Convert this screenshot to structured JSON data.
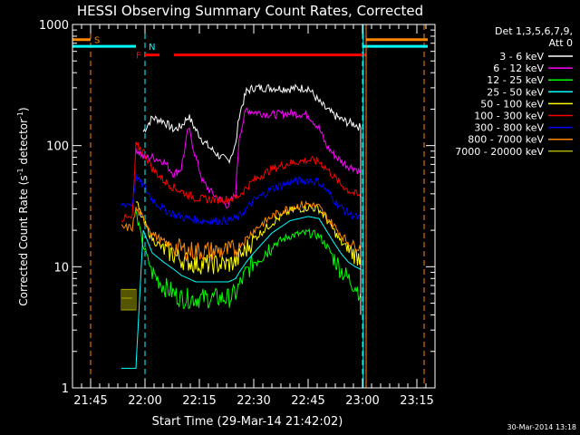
{
  "chart_data": {
    "type": "line",
    "title": "HESSI Observing Summary Count Rates, Corrected",
    "xlabel": "Start Time (29-Mar-14 21:42:02)",
    "ylabel": "Corrected Count Rate (s⁻¹ detector⁻¹)",
    "ylabel_main": "Corrected Count Rate (s",
    "ylabel_sup1": "-1",
    "ylabel_mid": " detector",
    "ylabel_sup2": "-1",
    "ylabel_end": ")",
    "x_unit": "minutes since 21:40 UT",
    "xlim": [
      0,
      100
    ],
    "ylim": [
      1,
      1000
    ],
    "yscale": "log",
    "x_ticks": [
      {
        "v": 5,
        "label": "21:45"
      },
      {
        "v": 20,
        "label": "22:00"
      },
      {
        "v": 35,
        "label": "22:15"
      },
      {
        "v": 50,
        "label": "22:30"
      },
      {
        "v": 65,
        "label": "22:45"
      },
      {
        "v": 80,
        "label": "23:00"
      },
      {
        "v": 95,
        "label": "23:15"
      }
    ],
    "y_ticks": [
      {
        "v": 1,
        "label": "1"
      },
      {
        "v": 10,
        "label": "10"
      },
      {
        "v": 100,
        "label": "100"
      },
      {
        "v": 1000,
        "label": "1000"
      }
    ],
    "legend": {
      "placement": "top-right, outside plot",
      "header1": "Det 1,3,5,6,7,9,",
      "header2": "Att 0"
    },
    "series": [
      {
        "name": "3 - 6 keV",
        "color": "#ffffff",
        "x": [
          13.5,
          14.5,
          15.5,
          16.5,
          17.5,
          19.5,
          22,
          25,
          28,
          30,
          32,
          34,
          36,
          38,
          41,
          43,
          45,
          46,
          48,
          50,
          55,
          60,
          65,
          68,
          70,
          72,
          74,
          76,
          78,
          79.5
        ],
        "y": [
          null,
          null,
          null,
          null,
          null,
          130,
          170,
          160,
          135,
          145,
          175,
          135,
          110,
          95,
          80,
          75,
          100,
          180,
          280,
          300,
          300,
          295,
          300,
          230,
          200,
          180,
          165,
          155,
          150,
          140
        ]
      },
      {
        "name": "6 - 12 keV",
        "color": "#ff00ff",
        "x": [
          13.5,
          14.5,
          15.5,
          16.5,
          17.5,
          19.5,
          22,
          25,
          28,
          30,
          32,
          34,
          36,
          38,
          41,
          43,
          45,
          46,
          48,
          50,
          55,
          60,
          65,
          68,
          70,
          72,
          74,
          76,
          78,
          79.5
        ],
        "y": [
          null,
          null,
          null,
          null,
          95,
          80,
          80,
          75,
          58,
          65,
          140,
          80,
          50,
          42,
          35,
          32,
          40,
          120,
          200,
          190,
          180,
          185,
          180,
          140,
          100,
          85,
          75,
          68,
          65,
          60
        ]
      },
      {
        "name": "12 - 25 keV",
        "color": "#00ff00",
        "x": [
          13.5,
          14.5,
          15.5,
          16.5,
          17.5,
          19.5,
          22,
          25,
          28,
          30,
          32,
          34,
          36,
          38,
          41,
          43,
          45,
          46,
          48,
          50,
          55,
          60,
          65,
          68,
          70,
          72,
          74,
          76,
          78,
          79.5
        ],
        "y": [
          null,
          null,
          null,
          null,
          28,
          15,
          9,
          7,
          6,
          5.5,
          5.5,
          5.5,
          5.5,
          5.5,
          5.5,
          5.5,
          6,
          7,
          9,
          11,
          15,
          18,
          19,
          18,
          15,
          12,
          9.5,
          8,
          7,
          6
        ]
      },
      {
        "name": "25 - 50 keV",
        "color": "#00ffff",
        "x": [
          13.5,
          14.5,
          15.5,
          16.5,
          17.5,
          19.5,
          22,
          25,
          28,
          30,
          32,
          34,
          36,
          38,
          41,
          43,
          45,
          46,
          48,
          50,
          55,
          60,
          65,
          68,
          70,
          72,
          74,
          76,
          78,
          79.5
        ],
        "y": [
          1.45,
          1.45,
          1.45,
          1.45,
          1.45,
          20,
          13,
          11,
          9.5,
          8.5,
          8,
          7.5,
          7.5,
          7.5,
          7.5,
          7.5,
          8,
          9,
          11,
          13,
          19,
          24,
          26,
          25,
          20,
          16,
          13,
          11,
          10,
          9.5
        ]
      },
      {
        "name": "50 - 100 keV",
        "color": "#ffff00",
        "x": [
          13.5,
          14.5,
          15.5,
          16.5,
          17.5,
          19.5,
          22,
          25,
          28,
          30,
          32,
          34,
          36,
          38,
          41,
          43,
          45,
          46,
          48,
          50,
          55,
          60,
          65,
          68,
          70,
          72,
          74,
          76,
          78,
          79.5
        ],
        "y": [
          null,
          null,
          null,
          null,
          35,
          24,
          17,
          14,
          12.5,
          11.5,
          11,
          10.5,
          10.5,
          10.5,
          10.5,
          10.5,
          11,
          12,
          14,
          17,
          23,
          29,
          31,
          30,
          25,
          20,
          16,
          14,
          12.5,
          12
        ]
      },
      {
        "name": "100 - 300 keV",
        "color": "#ff0000",
        "x": [
          13.5,
          14.5,
          15.5,
          16.5,
          17.5,
          19.5,
          22,
          25,
          28,
          30,
          32,
          34,
          36,
          38,
          41,
          43,
          45,
          46,
          48,
          50,
          55,
          60,
          65,
          68,
          70,
          72,
          74,
          76,
          78,
          79.5
        ],
        "y": [
          25,
          25,
          25,
          25,
          100,
          90,
          65,
          52,
          45,
          42,
          39,
          37,
          36,
          36,
          36,
          36,
          37,
          39,
          45,
          52,
          64,
          72,
          76,
          74,
          65,
          56,
          48,
          43,
          40,
          37
        ]
      },
      {
        "name": "300 - 800 keV",
        "color": "#0000ff",
        "x": [
          13.5,
          14.5,
          15.5,
          16.5,
          17.5,
          19.5,
          22,
          25,
          28,
          30,
          32,
          34,
          36,
          38,
          41,
          43,
          45,
          46,
          48,
          50,
          55,
          60,
          65,
          68,
          70,
          72,
          74,
          76,
          78,
          79.5
        ],
        "y": [
          33,
          33,
          33,
          33,
          55,
          47,
          36,
          30,
          27,
          26,
          25,
          24.5,
          24,
          24,
          24,
          24,
          25,
          26,
          30,
          35,
          44,
          50,
          52,
          50,
          43,
          36,
          31,
          28,
          26,
          25
        ]
      },
      {
        "name": "800 - 7000 keV",
        "color": "#ff8800",
        "x": [
          13.5,
          14.5,
          15.5,
          16.5,
          17.5,
          19.5,
          22,
          25,
          28,
          30,
          32,
          34,
          36,
          38,
          41,
          43,
          45,
          46,
          48,
          50,
          55,
          60,
          65,
          68,
          70,
          72,
          74,
          76,
          78,
          79.5
        ],
        "y": [
          21,
          21,
          21,
          21,
          30,
          25,
          19,
          16,
          14.5,
          14,
          13.5,
          13.5,
          13.5,
          13.5,
          13.5,
          13.5,
          14,
          15,
          17,
          20,
          26,
          31,
          33,
          31,
          26,
          22,
          18.5,
          16,
          15,
          14
        ]
      },
      {
        "name": "7000 - 20000 keV",
        "color": "#aaaa00",
        "x": [
          13.5,
          14.5,
          15.5,
          16.5,
          17.5
        ],
        "y": [
          5.5,
          5.5,
          5.5,
          5.5,
          null
        ]
      }
    ],
    "flags": {
      "S": {
        "label": "S",
        "color": "#ff8800",
        "y": 750,
        "segments": [
          [
            0,
            5
          ],
          [
            81,
            98
          ]
        ],
        "marks": [
          5,
          97
        ]
      },
      "N": {
        "label": "N",
        "color": "#00ffff",
        "y": 660,
        "segments": [
          [
            0,
            17.5
          ],
          [
            80,
            98
          ]
        ],
        "marks": [
          20,
          80
        ]
      },
      "F": {
        "label": "F",
        "color": "#ff0000",
        "y": 560,
        "segments": [
          [
            20,
            24
          ],
          [
            28,
            81
          ]
        ],
        "marks": []
      }
    }
  },
  "footer": {
    "timestamp": "30-Mar-2014 13:18"
  }
}
